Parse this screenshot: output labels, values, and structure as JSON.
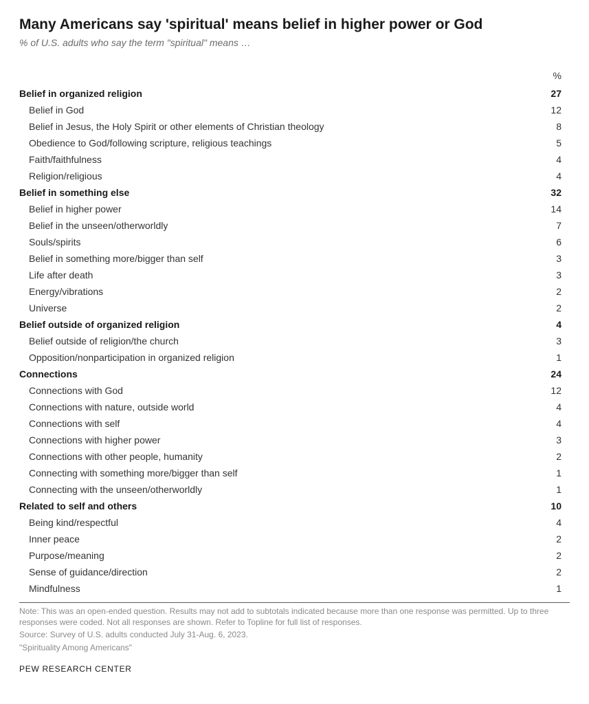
{
  "title": "Many Americans say 'spiritual' means belief in higher power or God",
  "subtitle": "% of U.S. adults who say the term \"spiritual\" means …",
  "pct_header": "%",
  "groups": [
    {
      "label": "Belief in organized religion",
      "value": "27",
      "items": [
        {
          "label": "Belief in God",
          "value": "12"
        },
        {
          "label": "Belief in Jesus, the Holy Spirit or other elements of Christian theology",
          "value": "8"
        },
        {
          "label": "Obedience to God/following scripture, religious teachings",
          "value": "5"
        },
        {
          "label": "Faith/faithfulness",
          "value": "4"
        },
        {
          "label": "Religion/religious",
          "value": "4"
        }
      ]
    },
    {
      "label": "Belief in something else",
      "value": "32",
      "items": [
        {
          "label": "Belief in higher power",
          "value": "14"
        },
        {
          "label": "Belief in the unseen/otherworldly",
          "value": "7"
        },
        {
          "label": "Souls/spirits",
          "value": "6"
        },
        {
          "label": "Belief in something more/bigger than self",
          "value": "3"
        },
        {
          "label": "Life after death",
          "value": "3"
        },
        {
          "label": "Energy/vibrations",
          "value": "2"
        },
        {
          "label": "Universe",
          "value": "2"
        }
      ]
    },
    {
      "label": "Belief outside of organized religion",
      "value": "4",
      "items": [
        {
          "label": "Belief outside of religion/the church",
          "value": "3"
        },
        {
          "label": "Opposition/nonparticipation in organized religion",
          "value": "1"
        }
      ]
    },
    {
      "label": "Connections",
      "value": "24",
      "items": [
        {
          "label": "Connections with God",
          "value": "12"
        },
        {
          "label": "Connections with nature, outside world",
          "value": "4"
        },
        {
          "label": "Connections with self",
          "value": "4"
        },
        {
          "label": "Connections with higher power",
          "value": "3"
        },
        {
          "label": "Connections with other people, humanity",
          "value": "2"
        },
        {
          "label": "Connecting with something more/bigger than self",
          "value": "1"
        },
        {
          "label": "Connecting with the unseen/otherworldly",
          "value": "1"
        }
      ]
    },
    {
      "label": "Related to self and others",
      "value": "10",
      "items": [
        {
          "label": "Being kind/respectful",
          "value": "4"
        },
        {
          "label": "Inner peace",
          "value": "2"
        },
        {
          "label": "Purpose/meaning",
          "value": "2"
        },
        {
          "label": "Sense of guidance/direction",
          "value": "2"
        },
        {
          "label": "Mindfulness",
          "value": "1"
        }
      ]
    }
  ],
  "note": "Note: This was an open-ended question. Results may not add to subtotals indicated because more than one response was permitted. Up to three responses were coded. Not all responses are shown. Refer to Topline for full list of responses.",
  "source": "Source: Survey of U.S. adults conducted July 31-Aug. 6, 2023.",
  "quote": "\"Spirituality Among Americans\"",
  "attribution": "PEW RESEARCH CENTER"
}
